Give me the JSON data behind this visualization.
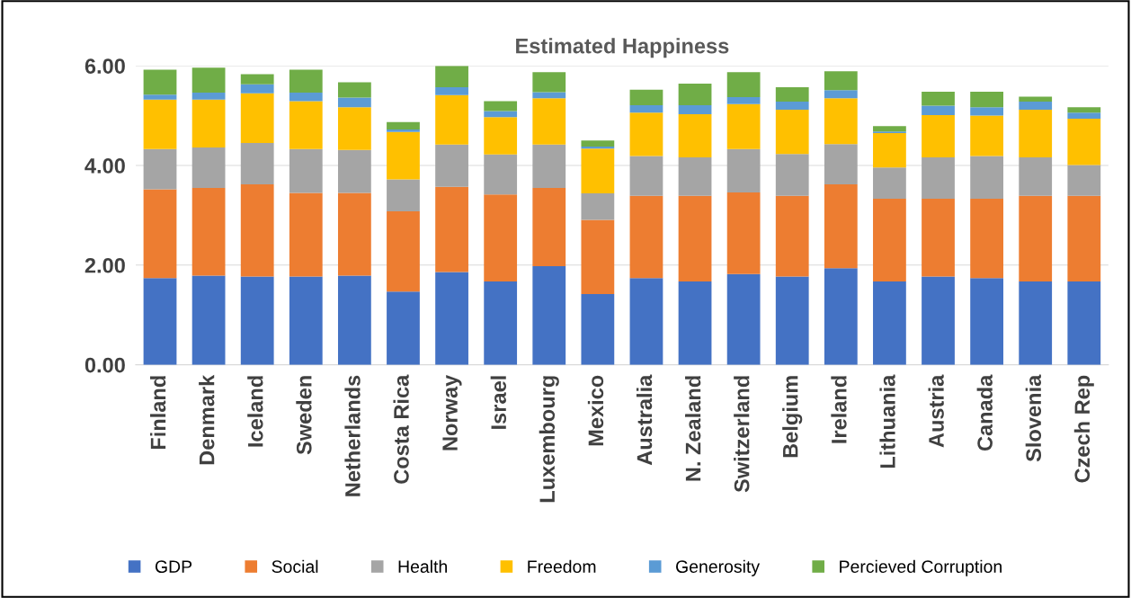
{
  "chart_data": {
    "type": "bar",
    "title": "Estimated Happiness",
    "stacked": true,
    "categories": [
      "Finland",
      "Denmark",
      "Iceland",
      "Sweden",
      "Netherlands",
      "Costa Rica",
      "Norway",
      "Israel",
      "Luxembourg",
      "Mexico",
      "Australia",
      "N. Zealand",
      "Switzerland",
      "Belgium",
      "Ireland",
      "Lithuania",
      "Austria",
      "Canada",
      "Slovenia",
      "Czech Rep"
    ],
    "series": [
      {
        "name": "GDP",
        "color": "#4472c4",
        "values": [
          1.74,
          1.79,
          1.77,
          1.77,
          1.79,
          1.47,
          1.86,
          1.67,
          1.98,
          1.42,
          1.74,
          1.67,
          1.82,
          1.77,
          1.94,
          1.67,
          1.77,
          1.74,
          1.67,
          1.67
        ]
      },
      {
        "name": "Social",
        "color": "#ed7d31",
        "values": [
          1.78,
          1.76,
          1.85,
          1.68,
          1.66,
          1.61,
          1.71,
          1.75,
          1.57,
          1.49,
          1.65,
          1.72,
          1.64,
          1.62,
          1.68,
          1.66,
          1.56,
          1.59,
          1.72,
          1.72
        ]
      },
      {
        "name": "Health",
        "color": "#a5a5a5",
        "values": [
          0.81,
          0.81,
          0.83,
          0.88,
          0.86,
          0.64,
          0.85,
          0.8,
          0.87,
          0.53,
          0.8,
          0.77,
          0.87,
          0.84,
          0.81,
          0.63,
          0.83,
          0.86,
          0.77,
          0.62
        ]
      },
      {
        "name": "Freedom",
        "color": "#ffc000",
        "values": [
          0.99,
          0.96,
          1.0,
          0.96,
          0.86,
          0.95,
          0.99,
          0.75,
          0.93,
          0.9,
          0.87,
          0.87,
          0.9,
          0.89,
          0.92,
          0.69,
          0.85,
          0.81,
          0.96,
          0.93
        ]
      },
      {
        "name": "Generosity",
        "color": "#5b9bd5",
        "values": [
          0.1,
          0.14,
          0.18,
          0.17,
          0.19,
          0.05,
          0.16,
          0.12,
          0.12,
          0.04,
          0.15,
          0.18,
          0.14,
          0.16,
          0.16,
          0.03,
          0.19,
          0.17,
          0.16,
          0.12
        ]
      },
      {
        "name": "Percieved Corruption",
        "color": "#70ad47",
        "values": [
          0.5,
          0.5,
          0.2,
          0.46,
          0.31,
          0.15,
          0.43,
          0.2,
          0.4,
          0.12,
          0.31,
          0.43,
          0.5,
          0.29,
          0.38,
          0.11,
          0.28,
          0.31,
          0.1,
          0.11
        ]
      }
    ],
    "ylim": [
      0,
      6.0
    ],
    "yticks": [
      {
        "value": 0,
        "label": "0.00"
      },
      {
        "value": 2,
        "label": "2.00"
      },
      {
        "value": 4,
        "label": "4.00"
      },
      {
        "value": 6,
        "label": "6.00"
      }
    ],
    "grid": "y",
    "legend": "bottom"
  }
}
